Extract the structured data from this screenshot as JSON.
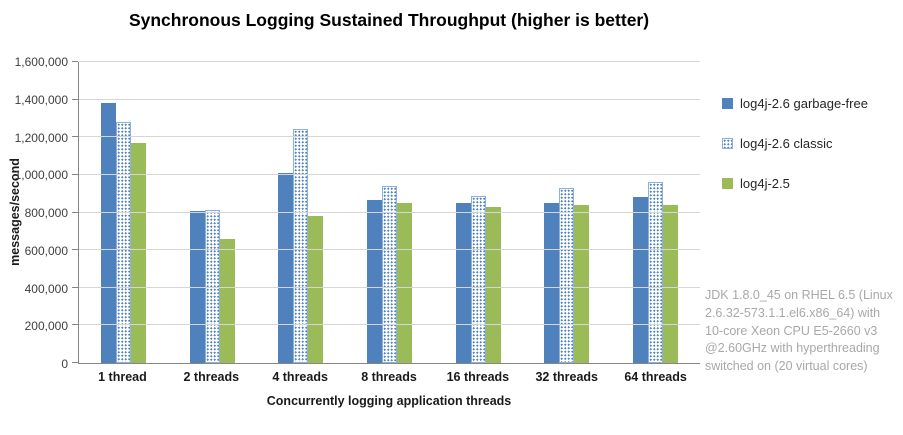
{
  "chart_data": {
    "type": "bar",
    "title": "Synchronous Logging Sustained Throughput (higher is better)",
    "categories": [
      "1 thread",
      "2 threads",
      "4 threads",
      "8 threads",
      "16 threads",
      "32 threads",
      "64 threads"
    ],
    "series": [
      {
        "name": "log4j-2.6 garbage-free",
        "color": "#4F81BD",
        "pattern": "solid",
        "values": [
          1380000,
          810000,
          1010000,
          865000,
          850000,
          850000,
          880000
        ]
      },
      {
        "name": "log4j-2.6 classic",
        "color": "#4F81BD",
        "pattern": "dots",
        "values": [
          1280000,
          815000,
          1245000,
          940000,
          890000,
          930000,
          960000
        ]
      },
      {
        "name": "log4j-2.5",
        "color": "#9BBB59",
        "pattern": "solid",
        "values": [
          1170000,
          660000,
          780000,
          850000,
          830000,
          840000,
          840000
        ]
      }
    ],
    "xlabel": "Concurrently logging application threads",
    "ylabel": "messages/second",
    "ylim": [
      0,
      1600000
    ],
    "ytick_step": 200000,
    "grid": true,
    "legend_position": "right",
    "colors": {
      "gridline": "#d6d6d6",
      "axis": "#868686",
      "annotation_text": "#a8a8a8"
    }
  },
  "annotation": {
    "text": "JDK 1.8.0_45 on RHEL 6.5 (Linux 2.6.32-573.1.1.el6.x86_64) with 10-core Xeon CPU E5-2660 v3 @2.60GHz with hyperthreading switched on (20 virtual cores)"
  }
}
